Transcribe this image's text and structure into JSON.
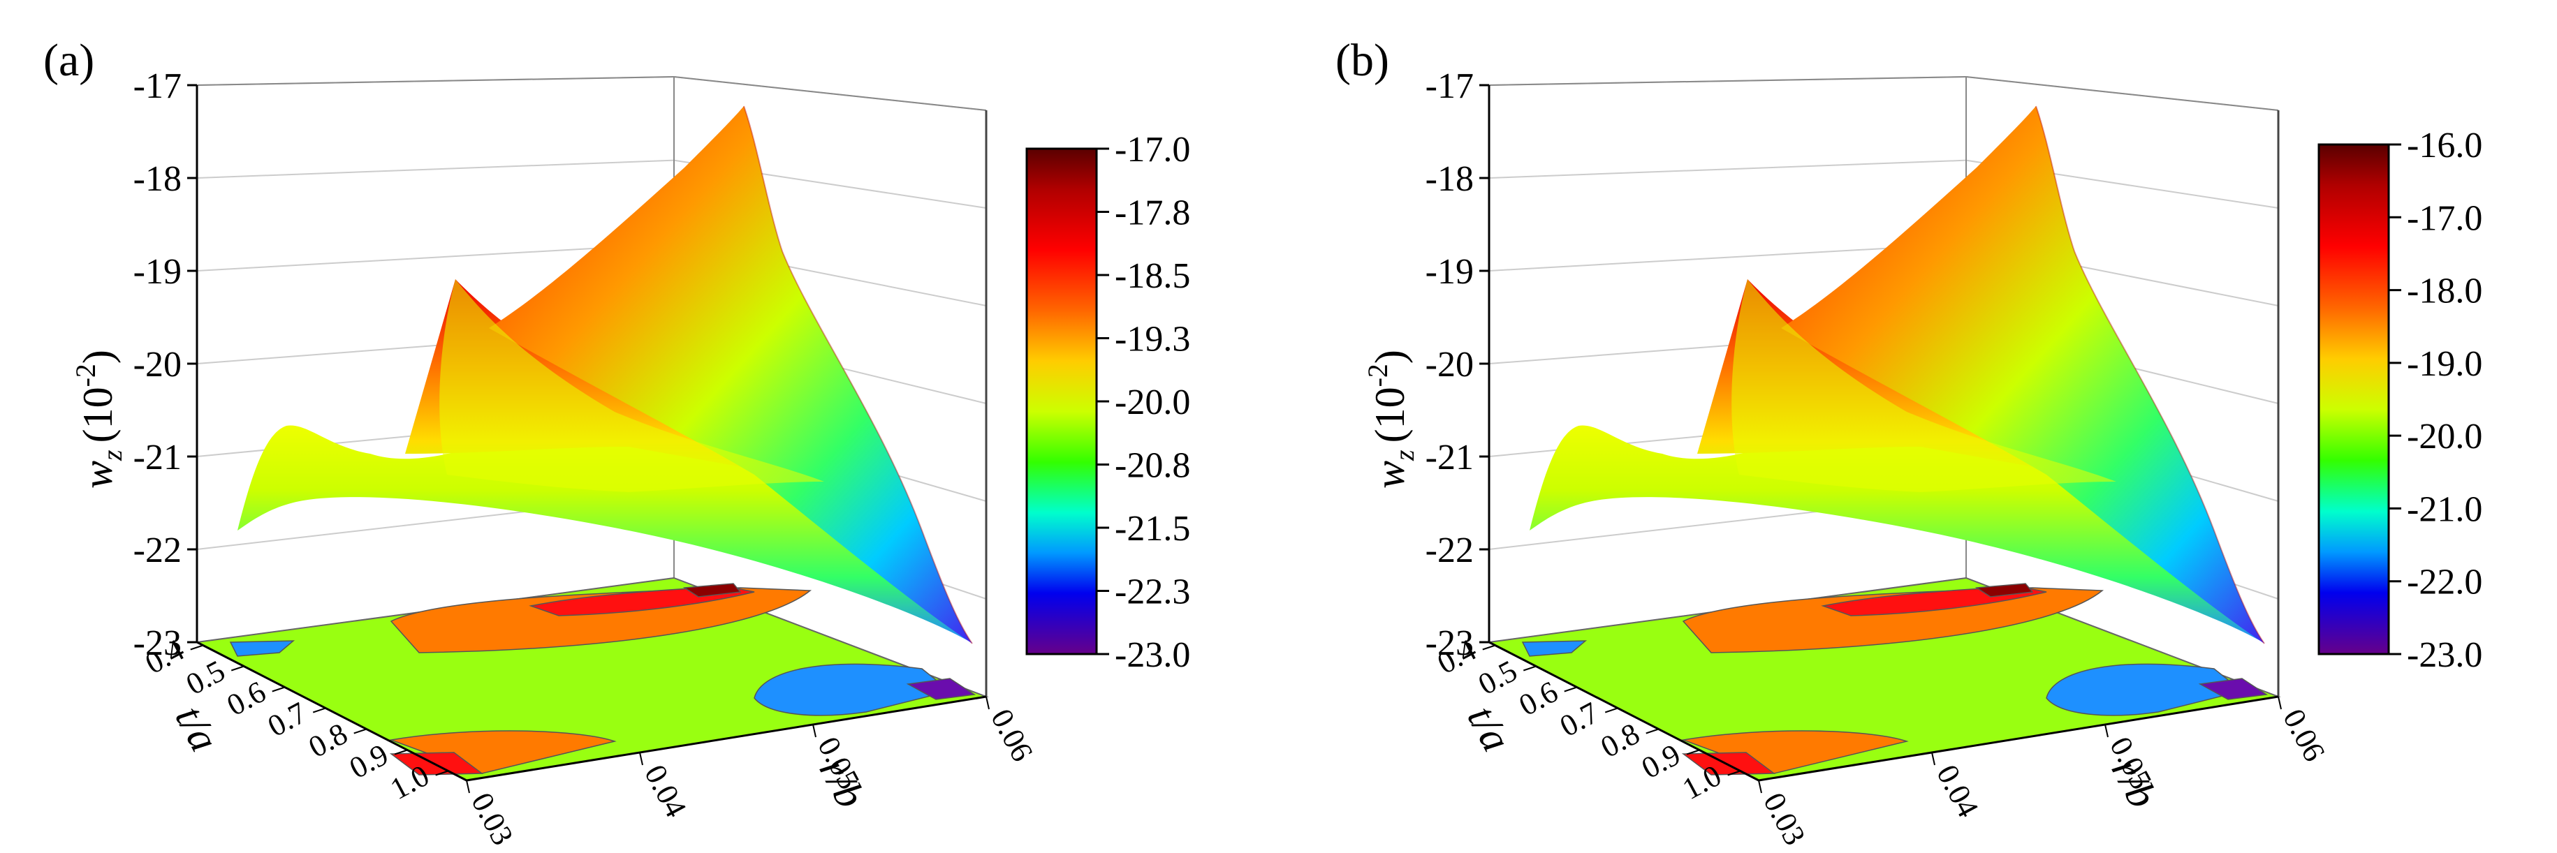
{
  "chart_data": [
    {
      "type": "surface3d",
      "panel_label": "(a)",
      "zlabel_main": "w",
      "zlabel_sub": "z",
      "zlabel_unit": "(10",
      "zlabel_exp": "-2",
      "zlabel_close": ")",
      "xlabel": "r/b",
      "ylabel": "t/a",
      "z_ticks": [
        "-17",
        "-18",
        "-19",
        "-20",
        "-21",
        "-22",
        "-23"
      ],
      "x_ticks": [
        "0.03",
        "0.04",
        "0.05",
        "0.06"
      ],
      "y_ticks": [
        "0.4",
        "0.5",
        "0.6",
        "0.7",
        "0.8",
        "0.9",
        "1.0"
      ],
      "zlim": [
        -23,
        -17
      ],
      "colorbar_ticks": [
        "-17.0",
        "-17.8",
        "-18.5",
        "-19.3",
        "-20.0",
        "-20.8",
        "-21.5",
        "-22.3",
        "-23.0"
      ],
      "colorbar_range": [
        -23.0,
        -17.0
      ],
      "ridge_points": [
        {
          "r_b": 0.03,
          "t_a": 0.4,
          "w_z": -21.7
        },
        {
          "r_b": 0.03,
          "t_a": 0.55,
          "w_z": -20.7
        },
        {
          "r_b": 0.03,
          "t_a": 0.7,
          "w_z": -19.1
        },
        {
          "r_b": 0.03,
          "t_a": 1.0,
          "w_z": -20.6
        },
        {
          "r_b": 0.06,
          "t_a": 0.4,
          "w_z": -17.3
        },
        {
          "r_b": 0.06,
          "t_a": 1.0,
          "w_z": -22.9
        }
      ]
    },
    {
      "type": "surface3d",
      "panel_label": "(b)",
      "zlabel_main": "w",
      "zlabel_sub": "z",
      "zlabel_unit": "(10",
      "zlabel_exp": "-2",
      "zlabel_close": ")",
      "xlabel": "r/b",
      "ylabel": "t/a",
      "z_ticks": [
        "-17",
        "-18",
        "-19",
        "-20",
        "-21",
        "-22",
        "-23"
      ],
      "x_ticks": [
        "0.03",
        "0.04",
        "0.05",
        "0.06"
      ],
      "y_ticks": [
        "0.4",
        "0.5",
        "0.6",
        "0.7",
        "0.8",
        "0.9",
        "1.0"
      ],
      "zlim": [
        -23,
        -17
      ],
      "colorbar_ticks": [
        "-16.0",
        "-17.0",
        "-18.0",
        "-19.0",
        "-20.0",
        "-21.0",
        "-22.0",
        "-23.0"
      ],
      "colorbar_range": [
        -23.0,
        -16.0
      ],
      "ridge_points": [
        {
          "r_b": 0.03,
          "t_a": 0.4,
          "w_z": -21.7
        },
        {
          "r_b": 0.03,
          "t_a": 0.55,
          "w_z": -20.7
        },
        {
          "r_b": 0.03,
          "t_a": 0.7,
          "w_z": -19.1
        },
        {
          "r_b": 0.03,
          "t_a": 1.0,
          "w_z": -20.6
        },
        {
          "r_b": 0.06,
          "t_a": 0.4,
          "w_z": -17.2
        },
        {
          "r_b": 0.06,
          "t_a": 1.0,
          "w_z": -22.9
        }
      ]
    }
  ]
}
